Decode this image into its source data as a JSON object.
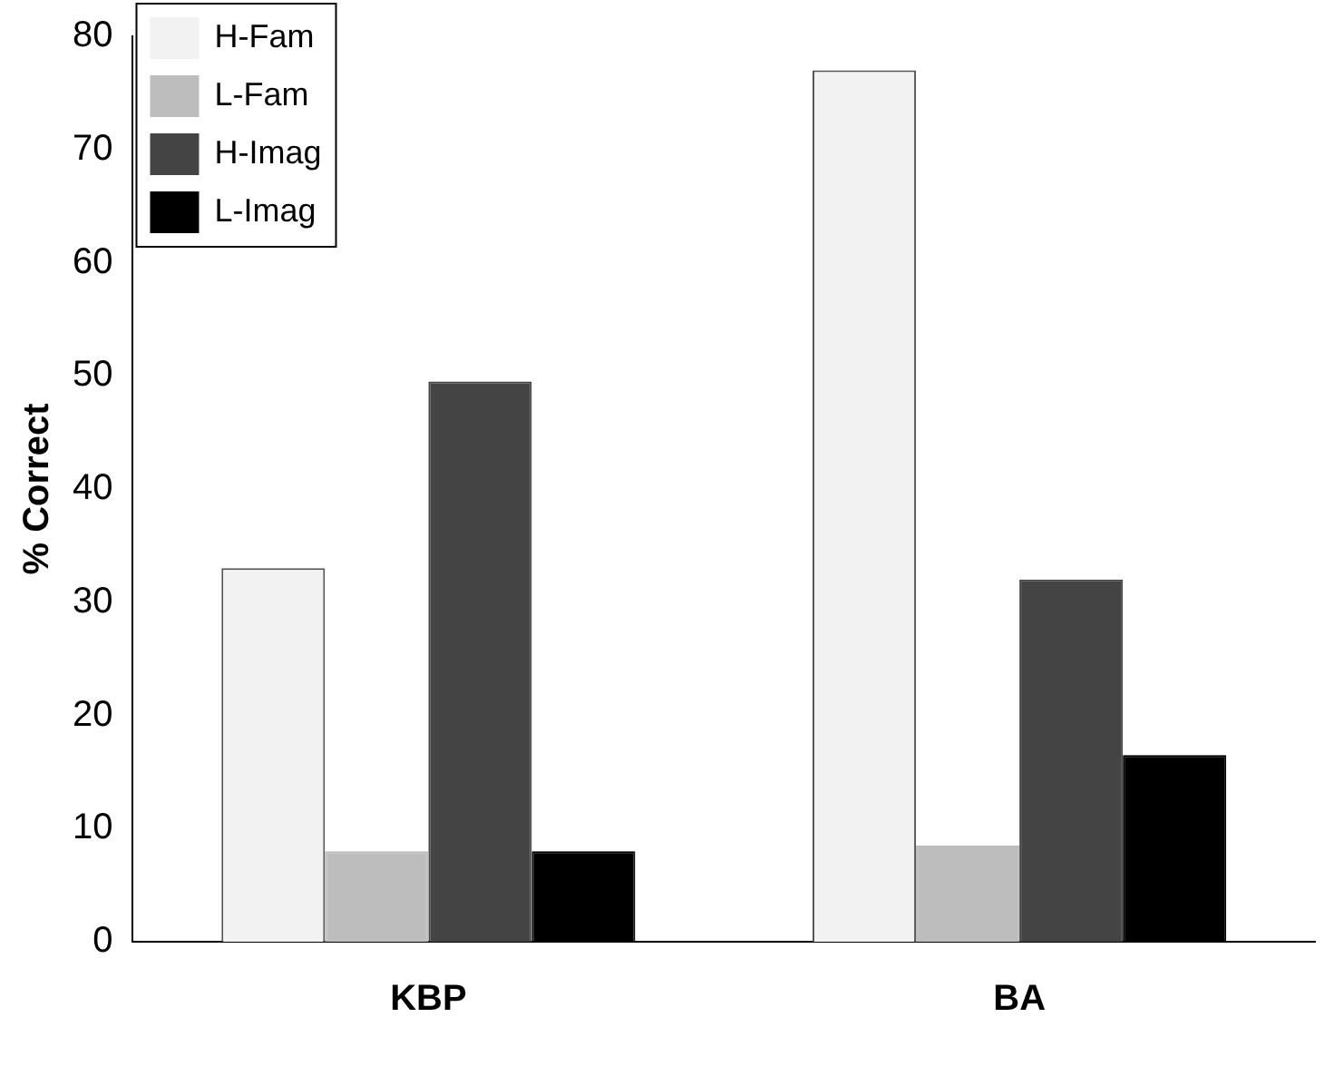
{
  "chart_data": {
    "type": "bar",
    "ylabel": "% Correct",
    "categories": [
      "KBP",
      "BA"
    ],
    "series": [
      {
        "name": "H-Fam",
        "color": "#f2f2f2",
        "values": [
          33,
          77
        ]
      },
      {
        "name": "L-Fam",
        "color": "#bdbdbd",
        "values": [
          8,
          8.5
        ]
      },
      {
        "name": "H-Imag",
        "color": "#444444",
        "values": [
          49.5,
          32
        ]
      },
      {
        "name": "L-Imag",
        "color": "#000000",
        "values": [
          8,
          16.5
        ]
      }
    ],
    "ylim": [
      0,
      80
    ],
    "yticks": [
      0,
      10,
      20,
      30,
      40,
      50,
      60,
      70,
      80
    ],
    "grid": false,
    "legend": "top left"
  }
}
